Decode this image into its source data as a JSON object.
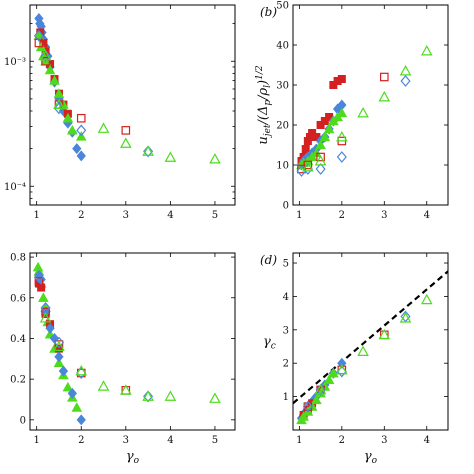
{
  "chart_data": [
    {
      "id": "a",
      "type": "scatter",
      "panel_label": "",
      "xlim": [
        0.85,
        5.45
      ],
      "ylim_log10": [
        -4.15,
        -2.55
      ],
      "yscale": "log",
      "x_ticks": [
        "1",
        "2",
        "3",
        "4",
        "5"
      ],
      "y_ticks": [
        {
          "label": "10⁻³",
          "exp": -3
        },
        {
          "label": "10⁻⁴",
          "exp": -4
        }
      ],
      "xlabel": "",
      "ylabel": "",
      "grid": false,
      "series": [
        {
          "marker": "diamond",
          "fill": true,
          "color": "#4a86d9",
          "x": [
            1.05,
            1.07,
            1.1,
            1.12,
            1.15,
            1.2,
            1.25,
            1.3,
            1.4,
            1.5,
            1.6,
            1.7,
            1.8,
            1.9,
            2.0
          ],
          "y": [
            0.0022,
            0.002,
            0.0019,
            0.0017,
            0.0015,
            0.0013,
            0.0011,
            0.0009,
            0.00068,
            0.0005,
            0.0004,
            0.00032,
            0.00027,
            0.0002,
            0.000175
          ]
        },
        {
          "marker": "square",
          "fill": true,
          "color": "#d42020",
          "x": [
            1.08,
            1.15,
            1.2,
            1.3,
            1.4,
            1.5,
            1.6,
            1.7
          ],
          "y": [
            0.0017,
            0.0014,
            0.0012,
            0.00095,
            0.00072,
            0.00055,
            0.00045,
            0.00038
          ]
        },
        {
          "marker": "triangle",
          "fill": true,
          "color": "#4ddc1c",
          "x": [
            1.05,
            1.1,
            1.15,
            1.2,
            1.3,
            1.4,
            1.5,
            1.6,
            1.7,
            1.8,
            2.0
          ],
          "y": [
            0.0016,
            0.0013,
            0.0011,
            0.001,
            0.00085,
            0.0007,
            0.00055,
            0.00045,
            0.00035,
            0.00028,
            0.00025
          ]
        },
        {
          "marker": "square",
          "fill": false,
          "color": "#d42020",
          "x": [
            1.05,
            1.2,
            1.5,
            2.0,
            3.0
          ],
          "y": [
            0.0014,
            0.001,
            0.00045,
            0.00035,
            0.00028
          ]
        },
        {
          "marker": "diamond",
          "fill": false,
          "color": "#4a86d9",
          "x": [
            1.05,
            1.2,
            1.5,
            2.0,
            3.5
          ],
          "y": [
            0.0016,
            0.0011,
            0.00042,
            0.00028,
            0.00019
          ]
        },
        {
          "marker": "triangle",
          "fill": false,
          "color": "#4ddc1c",
          "x": [
            1.2,
            1.5,
            2.5,
            3.0,
            3.5,
            4.0,
            5.0
          ],
          "y": [
            0.0011,
            0.00045,
            0.00029,
            0.00022,
            0.00019,
            0.00017,
            0.000165
          ]
        }
      ]
    },
    {
      "id": "b",
      "type": "scatter",
      "panel_label": "(b)",
      "xlim": [
        0.85,
        4.5
      ],
      "ylim": [
        0,
        50
      ],
      "x_ticks": [
        "1",
        "2",
        "3",
        "4"
      ],
      "y_ticks": [
        "0",
        "10",
        "20",
        "30",
        "40",
        "50"
      ],
      "xlabel": "",
      "ylabel": "u_jet/(Δ_p/ρ_l)^1/2",
      "grid": false,
      "series": [
        {
          "marker": "square",
          "fill": true,
          "color": "#d42020",
          "x": [
            1.05,
            1.1,
            1.15,
            1.2,
            1.25,
            1.3,
            1.4,
            1.5,
            1.6,
            1.7,
            1.8,
            1.9,
            2.0
          ],
          "y": [
            11,
            12,
            14,
            16,
            17,
            18,
            17,
            20,
            21,
            22,
            30,
            31,
            31.5
          ]
        },
        {
          "marker": "diamond",
          "fill": true,
          "color": "#4a86d9",
          "x": [
            1.05,
            1.1,
            1.15,
            1.2,
            1.3,
            1.4,
            1.5,
            1.6,
            1.7,
            1.8,
            1.9,
            2.0
          ],
          "y": [
            10,
            11,
            11.5,
            12,
            13,
            14,
            16,
            17,
            19,
            21,
            24,
            25
          ]
        },
        {
          "marker": "triangle",
          "fill": true,
          "color": "#4ddc1c",
          "x": [
            1.05,
            1.1,
            1.2,
            1.3,
            1.4,
            1.5,
            1.6,
            1.7,
            1.8,
            1.9,
            2.0
          ],
          "y": [
            10,
            10.5,
            11,
            12,
            13,
            15,
            17,
            19,
            21,
            22,
            23
          ]
        },
        {
          "marker": "square",
          "fill": false,
          "color": "#d42020",
          "x": [
            1.05,
            1.2,
            1.5,
            2.0,
            3.0
          ],
          "y": [
            9,
            10,
            12,
            16,
            32
          ]
        },
        {
          "marker": "diamond",
          "fill": false,
          "color": "#4a86d9",
          "x": [
            1.05,
            1.2,
            1.5,
            2.0,
            3.5
          ],
          "y": [
            8.5,
            9,
            9,
            12,
            31
          ]
        },
        {
          "marker": "triangle",
          "fill": false,
          "color": "#4ddc1c",
          "x": [
            1.2,
            1.5,
            2.0,
            2.5,
            3.0,
            3.5,
            4.0
          ],
          "y": [
            9.5,
            11,
            17,
            23,
            27,
            33.5,
            38.5
          ]
        }
      ]
    },
    {
      "id": "c",
      "type": "scatter",
      "panel_label": "",
      "xlim": [
        0.85,
        5.45
      ],
      "ylim": [
        -0.05,
        0.82
      ],
      "x_ticks": [
        "1",
        "2",
        "3",
        "4",
        "5"
      ],
      "y_ticks": [
        "0",
        "0.2",
        "0.4",
        "0.6",
        "0.8"
      ],
      "xlabel": "γ_o",
      "ylabel": "",
      "grid": false,
      "series": [
        {
          "marker": "triangle",
          "fill": true,
          "color": "#4ddc1c",
          "x": [
            1.03,
            1.05,
            1.1,
            1.15,
            1.2,
            1.25,
            1.3,
            1.4,
            1.5,
            1.6,
            1.7,
            1.8,
            1.9
          ],
          "y": [
            0.75,
            0.73,
            0.67,
            0.6,
            0.55,
            0.48,
            0.42,
            0.35,
            0.28,
            0.22,
            0.16,
            0.11,
            0.06
          ]
        },
        {
          "marker": "square",
          "fill": true,
          "color": "#d42020",
          "x": [
            1.05,
            1.1,
            1.2,
            1.3,
            1.5
          ],
          "y": [
            0.67,
            0.65,
            0.52,
            0.47,
            0.35
          ]
        },
        {
          "marker": "diamond",
          "fill": true,
          "color": "#4a86d9",
          "x": [
            1.05,
            1.1,
            1.2,
            1.3,
            1.4,
            1.5,
            1.6,
            1.8,
            2.0
          ],
          "y": [
            0.71,
            0.69,
            0.53,
            0.45,
            0.4,
            0.31,
            0.24,
            0.13,
            0.0
          ]
        },
        {
          "marker": "square",
          "fill": false,
          "color": "#d42020",
          "x": [
            1.05,
            1.2,
            1.5,
            2.0,
            3.0
          ],
          "y": [
            0.68,
            0.53,
            0.37,
            0.23,
            0.145
          ]
        },
        {
          "marker": "diamond",
          "fill": false,
          "color": "#4a86d9",
          "x": [
            1.05,
            1.2,
            1.5,
            2.0,
            3.5
          ],
          "y": [
            0.7,
            0.55,
            0.38,
            0.23,
            0.115
          ]
        },
        {
          "marker": "triangle",
          "fill": false,
          "color": "#4ddc1c",
          "x": [
            1.2,
            1.5,
            2.0,
            2.5,
            3.0,
            3.5,
            4.0,
            5.0
          ],
          "y": [
            0.5,
            0.36,
            0.24,
            0.165,
            0.145,
            0.115,
            0.115,
            0.105
          ]
        }
      ]
    },
    {
      "id": "d",
      "type": "scatter",
      "panel_label": "(d)",
      "xlim": [
        0.85,
        4.5
      ],
      "ylim": [
        0,
        5.3
      ],
      "x_ticks": [
        "1",
        "2",
        "3",
        "4"
      ],
      "y_ticks": [
        "1",
        "2",
        "3",
        "4",
        "5"
      ],
      "xlabel": "γ_o",
      "ylabel": "γ_c",
      "grid": false,
      "series": [
        {
          "marker": "diamond",
          "fill": true,
          "color": "#4a86d9",
          "x": [
            1.05,
            1.1,
            1.15,
            1.2,
            1.3,
            1.4,
            1.5,
            1.6,
            1.8,
            2.0
          ],
          "y": [
            0.35,
            0.45,
            0.55,
            0.65,
            0.85,
            1.0,
            1.2,
            1.35,
            1.7,
            2.0
          ]
        },
        {
          "marker": "square",
          "fill": true,
          "color": "#d42020",
          "x": [
            1.1,
            1.2,
            1.3,
            1.5
          ],
          "y": [
            0.45,
            0.6,
            0.8,
            1.2
          ]
        },
        {
          "marker": "triangle",
          "fill": true,
          "color": "#4ddc1c",
          "x": [
            1.05,
            1.1,
            1.2,
            1.3,
            1.4,
            1.5,
            1.6,
            1.7,
            1.8
          ],
          "y": [
            0.3,
            0.4,
            0.55,
            0.7,
            0.9,
            1.1,
            1.3,
            1.5,
            1.7
          ]
        },
        {
          "marker": "square",
          "fill": false,
          "color": "#d42020",
          "x": [
            1.2,
            1.5,
            2.0,
            3.0
          ],
          "y": [
            0.7,
            1.2,
            1.8,
            2.85
          ]
        },
        {
          "marker": "diamond",
          "fill": false,
          "color": "#4a86d9",
          "x": [
            1.2,
            1.5,
            2.0,
            3.5
          ],
          "y": [
            0.7,
            1.2,
            1.75,
            3.4
          ]
        },
        {
          "marker": "triangle",
          "fill": false,
          "color": "#4ddc1c",
          "x": [
            1.5,
            2.0,
            2.5,
            3.0,
            3.5,
            4.0
          ],
          "y": [
            1.2,
            1.8,
            2.35,
            2.85,
            3.35,
            3.9
          ]
        }
      ],
      "line": {
        "style": "dashed",
        "color": "#000000",
        "x": [
          0.85,
          4.5
        ],
        "y": [
          0.8,
          4.75
        ]
      }
    }
  ]
}
